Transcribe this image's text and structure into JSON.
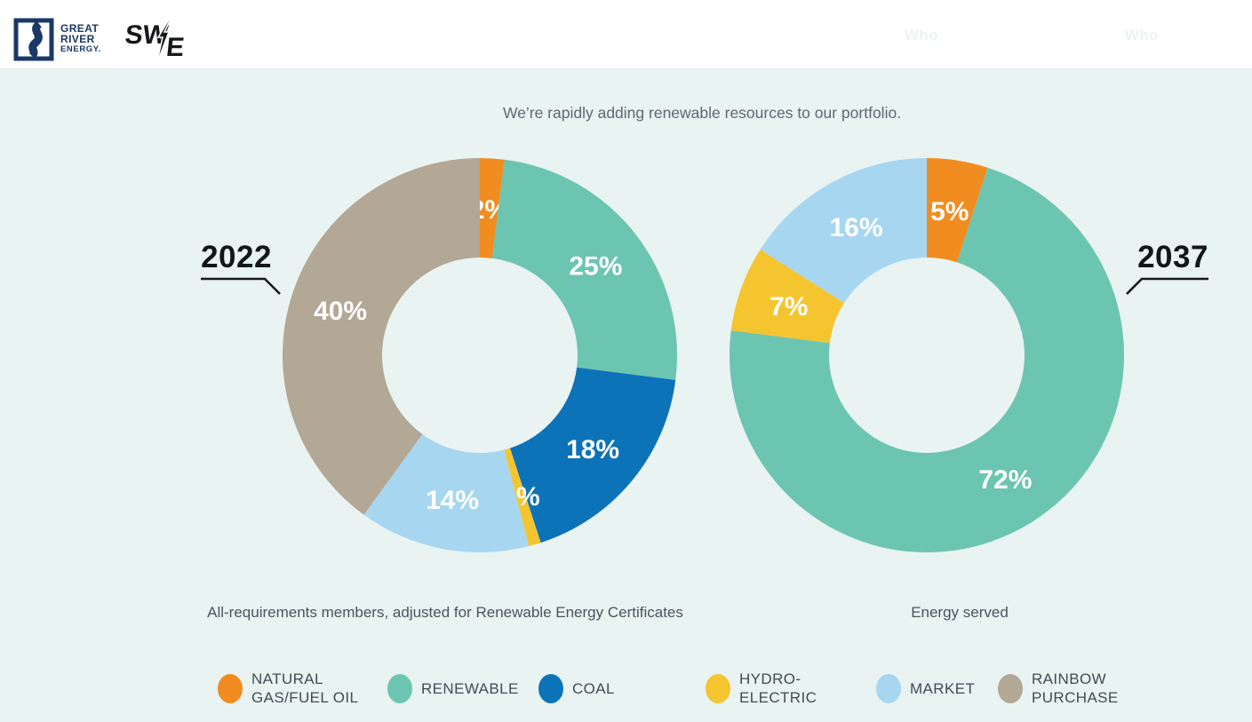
{
  "header": {
    "gre_logo_lines": [
      "GREAT",
      "RIVER",
      "ENERGY."
    ],
    "swce_logo": {
      "left": "SW",
      "right": "E"
    },
    "ghost_nav": [
      {
        "label": "Who"
      },
      {
        "label": "Who"
      }
    ]
  },
  "main": {
    "title": "We’re rapidly adding renewable resources to our portfolio."
  },
  "chart_data": [
    {
      "type": "donut",
      "year": "2022",
      "caption": "All-requirements members, adjusted for Renewable Energy Certificates",
      "start_angle_deg": 0,
      "slices": [
        {
          "label": "Natural gas/fuel oil",
          "value": 2,
          "display": "2%",
          "color": "#F18C21"
        },
        {
          "label": "Renewable",
          "value": 25,
          "display": "25%",
          "color": "#6CC5B0"
        },
        {
          "label": "Coal",
          "value": 18,
          "display": "18%",
          "color": "#0C73B9"
        },
        {
          "label": "Hydro-electric",
          "value": 1,
          "display": "1%",
          "color": "#F4C52F"
        },
        {
          "label": "Market",
          "value": 14,
          "display": "14%",
          "color": "#A7D6F1"
        },
        {
          "label": "Rainbow purchase",
          "value": 40,
          "display": "40%",
          "color": "#B3A795"
        }
      ]
    },
    {
      "type": "donut",
      "year": "2037",
      "caption": "Energy served",
      "start_angle_deg": 0,
      "slices": [
        {
          "label": "Natural gas/fuel oil",
          "value": 5,
          "display": "5%",
          "color": "#F18C21"
        },
        {
          "label": "Renewable",
          "value": 72,
          "display": "72%",
          "color": "#6CC5B0"
        },
        {
          "label": "Hydro-electric",
          "value": 7,
          "display": "7%",
          "color": "#F4C52F"
        },
        {
          "label": "Market",
          "value": 16,
          "display": "16%",
          "color": "#A7D6F1"
        }
      ]
    }
  ],
  "legend": [
    {
      "label": "NATURAL GAS/FUEL OIL",
      "lines": [
        "NATURAL",
        "GAS/FUEL OIL"
      ],
      "color": "#F18C21"
    },
    {
      "label": "RENEWABLE",
      "lines": [
        "RENEWABLE"
      ],
      "color": "#6CC5B0"
    },
    {
      "label": "COAL",
      "lines": [
        "COAL"
      ],
      "color": "#0C73B9"
    },
    {
      "label": "HYDRO-ELECTRIC",
      "lines": [
        "HYDRO-",
        "ELECTRIC"
      ],
      "color": "#F4C52F"
    },
    {
      "label": "MARKET",
      "lines": [
        "MARKET"
      ],
      "color": "#A7D6F1"
    },
    {
      "label": "RAINBOW PURCHASE",
      "lines": [
        "RAINBOW",
        "PURCHASE"
      ],
      "color": "#B3A795"
    }
  ],
  "colors": {
    "background": "#E9F3F2",
    "header_background": "#FFFFFF",
    "slice_label_text": "#FFFFFF",
    "year_label_text": "#13171A",
    "caption_text": "#4A545C",
    "logo_navy": "#1B3867"
  }
}
